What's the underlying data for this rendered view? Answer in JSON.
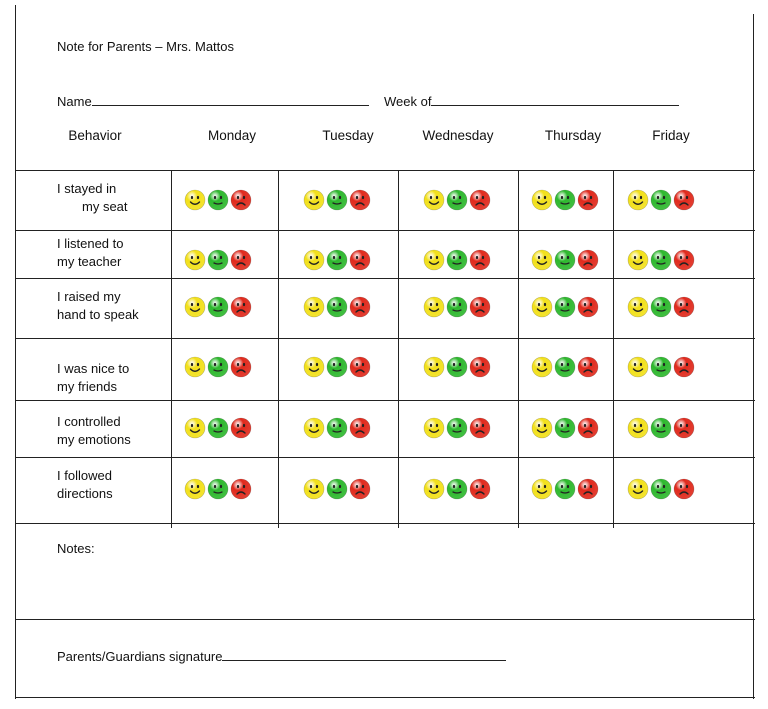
{
  "header": {
    "title": "Note for Parents – Mrs. Mattos",
    "name_label": "Name",
    "week_label": "Week of"
  },
  "table": {
    "behavior_header": "Behavior",
    "days": [
      "Monday",
      "Tuesday",
      "Wednesday",
      "Thursday",
      "Friday"
    ],
    "behaviors": [
      {
        "line1": "I stayed in",
        "line2": "my seat"
      },
      {
        "line1": "I listened to",
        "line2": "my teacher"
      },
      {
        "line1": "I raised my",
        "line2": "hand to speak"
      },
      {
        "line1": "I was nice to",
        "line2": "my friends"
      },
      {
        "line1": "I controlled",
        "line2": "my emotions"
      },
      {
        "line1": "I followed",
        "line2": "directions"
      }
    ],
    "faces": [
      "happy-face-icon",
      "neutral-face-icon",
      "sad-face-icon"
    ],
    "face_colors": {
      "happy": "#f2e01a",
      "neutral": "#2eb82e",
      "sad": "#e02a1d"
    }
  },
  "notes": {
    "label": "Notes:"
  },
  "signature": {
    "label": "Parents/Guardians signature"
  }
}
